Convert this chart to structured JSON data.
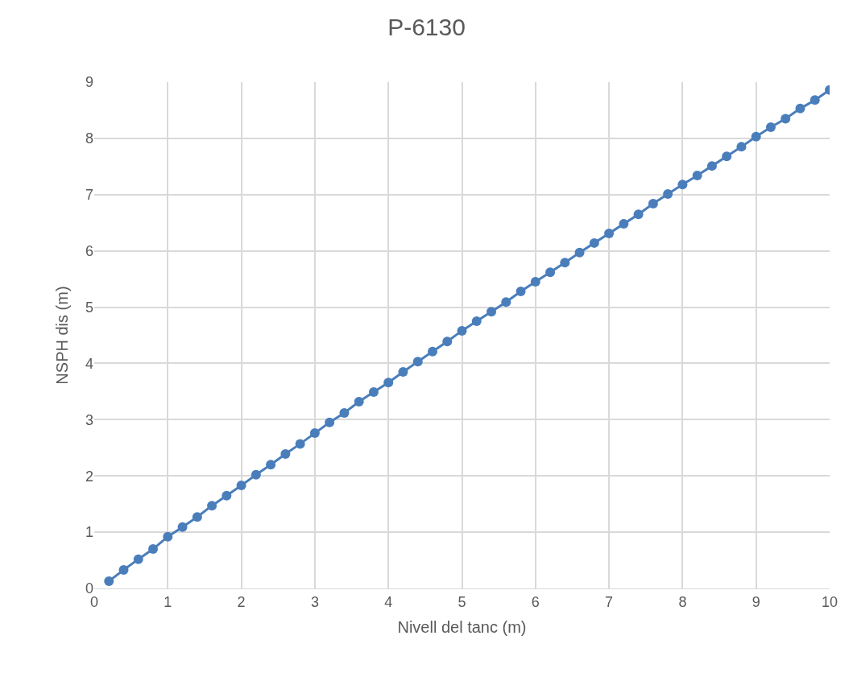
{
  "chart_data": {
    "type": "line",
    "title": "P-6130",
    "xlabel": "Nivell del tanc (m)",
    "ylabel": "NSPH dis (m)",
    "x": [
      0.2,
      0.4,
      0.6,
      0.8,
      1.0,
      1.2,
      1.4,
      1.6,
      1.8,
      2.0,
      2.2,
      2.4,
      2.6,
      2.8,
      3.0,
      3.2,
      3.4,
      3.6,
      3.8,
      4.0,
      4.2,
      4.4,
      4.6,
      4.8,
      5.0,
      5.2,
      5.4,
      5.6,
      5.8,
      6.0,
      6.2,
      6.4,
      6.6,
      6.8,
      7.0,
      7.2,
      7.4,
      7.6,
      7.8,
      8.0,
      8.2,
      8.4,
      8.6,
      8.8,
      9.0,
      9.2,
      9.4,
      9.6,
      9.8,
      10.0
    ],
    "series": [
      {
        "color": "#4a7ebb",
        "values": [
          0.13,
          0.33,
          0.52,
          0.7,
          0.92,
          1.09,
          1.27,
          1.47,
          1.65,
          1.83,
          2.02,
          2.2,
          2.39,
          2.57,
          2.76,
          2.95,
          3.12,
          3.32,
          3.49,
          3.66,
          3.85,
          4.03,
          4.21,
          4.39,
          4.58,
          4.75,
          4.92,
          5.09,
          5.28,
          5.45,
          5.62,
          5.79,
          5.97,
          6.14,
          6.31,
          6.48,
          6.65,
          6.84,
          7.01,
          7.18,
          7.34,
          7.51,
          7.68,
          7.85,
          8.03,
          8.2,
          8.35,
          8.53,
          8.68,
          8.86
        ]
      }
    ],
    "xlim": [
      0,
      10
    ],
    "xticks": [
      0,
      1,
      2,
      3,
      4,
      5,
      6,
      7,
      8,
      9,
      10
    ],
    "ylim": [
      0,
      9
    ],
    "yticks": [
      0,
      1,
      2,
      3,
      4,
      5,
      6,
      7,
      8,
      9
    ],
    "grid": true,
    "marker": "circle",
    "line_style": "solid"
  }
}
